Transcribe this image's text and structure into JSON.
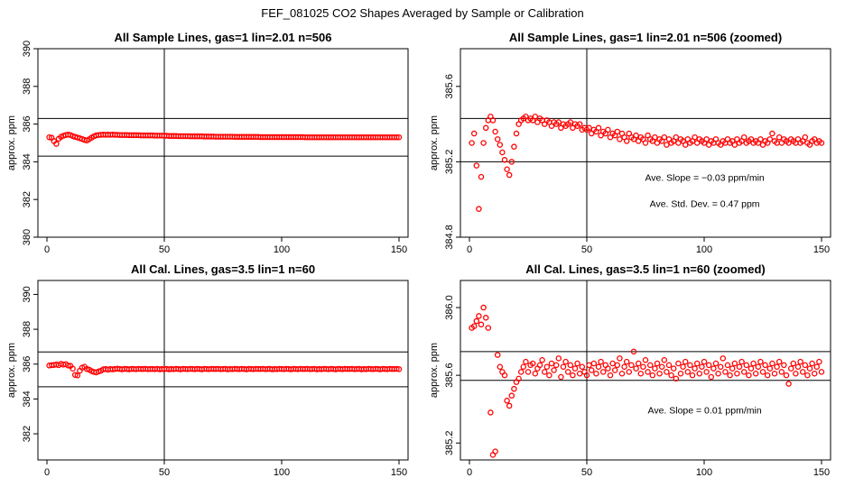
{
  "figure_title": "FEF_081025  CO2 Shapes Averaged by Sample or Calibration",
  "colors": {
    "points": "#ff0000",
    "lines": "#000000",
    "background": "#ffffff"
  },
  "chart_data": [
    {
      "type": "scatter",
      "title": "All Sample Lines, gas=1 lin=2.01 n=506",
      "xlabel": "",
      "ylabel": "approx. ppm",
      "xlim": [
        0,
        150
      ],
      "ylim": [
        380,
        390
      ],
      "xticks": [
        0,
        50,
        100,
        150
      ],
      "yticks": [
        380,
        382,
        384,
        386,
        388,
        390
      ],
      "hlines": [
        386.3,
        384.3
      ],
      "vline": 50,
      "annotations": [],
      "x_range": [
        1,
        150
      ],
      "y": [
        385.3,
        385.28,
        385.1,
        384.95,
        385.22,
        385.32,
        385.38,
        385.42,
        385.44,
        385.42,
        385.36,
        385.32,
        385.29,
        385.25,
        385.21,
        385.16,
        385.13,
        385.2,
        385.28,
        385.35,
        385.4,
        385.42,
        385.43,
        385.44,
        385.43,
        385.44,
        385.43,
        385.44,
        385.43,
        385.43,
        385.42,
        385.42,
        385.42,
        385.42,
        385.41,
        385.41,
        385.41,
        385.41,
        385.41,
        385.4,
        385.4,
        385.4,
        385.4,
        385.4,
        385.4,
        385.39,
        385.39,
        385.39,
        385.39,
        385.38,
        385.38,
        385.37,
        385.37,
        385.37,
        385.37,
        385.36,
        385.36,
        385.36,
        385.36,
        385.36,
        385.35,
        385.35,
        385.35,
        385.35,
        385.35,
        385.35,
        385.34,
        385.34,
        385.34,
        385.34,
        385.34,
        385.33,
        385.33,
        385.33,
        385.33,
        385.33,
        385.33,
        385.33,
        385.33,
        385.32,
        385.32,
        385.32,
        385.32,
        385.32,
        385.32,
        385.32,
        385.32,
        385.32,
        385.32,
        385.32,
        385.31,
        385.31,
        385.31,
        385.31,
        385.31,
        385.31,
        385.31,
        385.31,
        385.31,
        385.31,
        385.31,
        385.31,
        385.31,
        385.31,
        385.31,
        385.31,
        385.31,
        385.31,
        385.31,
        385.3,
        385.3,
        385.3,
        385.3,
        385.3,
        385.3,
        385.3,
        385.3,
        385.3,
        385.3,
        385.3,
        385.3,
        385.3,
        385.3,
        385.3,
        385.3,
        385.3,
        385.3,
        385.3,
        385.3,
        385.3,
        385.3,
        385.3,
        385.3,
        385.3,
        385.3,
        385.3,
        385.3,
        385.3,
        385.3,
        385.3,
        385.3,
        385.3,
        385.3,
        385.3,
        385.3,
        385.3,
        385.3,
        385.3,
        385.3,
        385.3
      ]
    },
    {
      "type": "scatter",
      "title": "All Sample Lines, gas=1 lin=2.01 n=506 (zoomed)",
      "xlabel": "",
      "ylabel": "approx. ppm",
      "xlim": [
        0,
        150
      ],
      "ylim": [
        384.8,
        385.8
      ],
      "xticks": [
        0,
        50,
        100,
        150
      ],
      "yticks": [
        384.8,
        385.2,
        385.6
      ],
      "hlines": [
        385.43,
        385.2
      ],
      "vline": 50,
      "annotations": [
        "Ave. Slope =  −0.03  ppm/min",
        "Ave. Std. Dev. =  0.47  ppm"
      ],
      "x_range": [
        1,
        150
      ],
      "y": [
        385.3,
        385.35,
        385.18,
        384.95,
        385.12,
        385.3,
        385.38,
        385.42,
        385.44,
        385.42,
        385.36,
        385.32,
        385.29,
        385.25,
        385.21,
        385.16,
        385.13,
        385.2,
        385.28,
        385.35,
        385.4,
        385.42,
        385.43,
        385.44,
        385.42,
        385.43,
        385.42,
        385.44,
        385.41,
        385.43,
        385.42,
        385.4,
        385.42,
        385.41,
        385.39,
        385.41,
        385.4,
        385.41,
        385.38,
        385.4,
        385.39,
        385.4,
        385.41,
        385.38,
        385.4,
        385.39,
        385.4,
        385.37,
        385.38,
        385.37,
        385.38,
        385.35,
        385.37,
        385.36,
        385.38,
        385.34,
        385.36,
        385.35,
        385.37,
        385.33,
        385.35,
        385.34,
        385.36,
        385.32,
        385.35,
        385.33,
        385.31,
        385.35,
        385.33,
        385.32,
        385.34,
        385.31,
        385.33,
        385.32,
        385.3,
        385.34,
        385.32,
        385.31,
        385.33,
        385.3,
        385.32,
        385.31,
        385.33,
        385.29,
        385.32,
        385.3,
        385.31,
        385.33,
        385.3,
        385.32,
        385.31,
        385.29,
        385.32,
        385.3,
        385.31,
        385.33,
        385.3,
        385.32,
        385.31,
        385.3,
        385.32,
        385.29,
        385.31,
        385.3,
        385.32,
        385.3,
        385.29,
        385.31,
        385.3,
        385.32,
        385.3,
        385.31,
        385.29,
        385.32,
        385.3,
        385.31,
        385.33,
        385.3,
        385.31,
        385.32,
        385.3,
        385.31,
        385.3,
        385.32,
        385.29,
        385.31,
        385.3,
        385.32,
        385.35,
        385.31,
        385.3,
        385.33,
        385.3,
        385.32,
        385.31,
        385.3,
        385.32,
        385.31,
        385.3,
        385.32,
        385.3,
        385.31,
        385.33,
        385.3,
        385.29,
        385.31,
        385.32,
        385.3,
        385.31,
        385.3
      ]
    },
    {
      "type": "scatter",
      "title": "All Cal. Lines, gas=3.5 lin=1 n=60",
      "xlabel": "",
      "ylabel": "approx. ppm",
      "xlim": [
        0,
        150
      ],
      "ylim": [
        380.5,
        390.8
      ],
      "xticks": [
        0,
        50,
        100,
        150
      ],
      "yticks": [
        382,
        384,
        386,
        388,
        390
      ],
      "hlines": [
        386.7,
        384.7
      ],
      "vline": 50,
      "annotations": [],
      "x_range": [
        1,
        150
      ],
      "y": [
        385.92,
        385.94,
        385.95,
        385.98,
        385.94,
        386.02,
        385.97,
        386,
        385.92,
        385.9,
        385.74,
        385.38,
        385.35,
        385.62,
        385.8,
        385.85,
        385.72,
        385.68,
        385.6,
        385.55,
        385.52,
        385.58,
        385.62,
        385.7,
        385.72,
        385.68,
        385.72,
        385.7,
        385.72,
        385.74,
        385.72,
        385.7,
        385.73,
        385.72,
        385.7,
        385.73,
        385.72,
        385.71,
        385.73,
        385.72,
        385.72,
        385.73,
        385.71,
        385.72,
        385.72,
        385.71,
        385.73,
        385.7,
        385.72,
        385.71,
        385.73,
        385.7,
        385.72,
        385.71,
        385.73,
        385.72,
        385.7,
        385.73,
        385.72,
        385.71,
        385.73,
        385.72,
        385.71,
        385.73,
        385.72,
        385.7,
        385.73,
        385.72,
        385.71,
        385.73,
        385.72,
        385.72,
        385.73,
        385.71,
        385.72,
        385.73,
        385.7,
        385.72,
        385.71,
        385.73,
        385.72,
        385.71,
        385.73,
        385.72,
        385.7,
        385.73,
        385.72,
        385.71,
        385.73,
        385.72,
        385.72,
        385.73,
        385.71,
        385.72,
        385.73,
        385.7,
        385.72,
        385.71,
        385.73,
        385.72,
        385.71,
        385.73,
        385.72,
        385.7,
        385.73,
        385.72,
        385.71,
        385.73,
        385.72,
        385.72,
        385.73,
        385.71,
        385.72,
        385.73,
        385.7,
        385.72,
        385.71,
        385.73,
        385.72,
        385.71,
        385.73,
        385.72,
        385.7,
        385.73,
        385.72,
        385.71,
        385.73,
        385.72,
        385.72,
        385.73,
        385.71,
        385.72,
        385.73,
        385.7,
        385.72,
        385.71,
        385.73,
        385.72,
        385.71,
        385.73,
        385.72,
        385.7,
        385.73,
        385.72,
        385.71,
        385.73,
        385.72,
        385.72,
        385.73,
        385.71
      ]
    },
    {
      "type": "scatter",
      "title": "All Cal. Lines, gas=3.5 lin=1 n=60 (zoomed)",
      "xlabel": "",
      "ylabel": "approx. ppm",
      "xlim": [
        0,
        150
      ],
      "ylim": [
        385.1,
        386.16
      ],
      "xticks": [
        0,
        50,
        100,
        150
      ],
      "yticks": [
        385.2,
        385.6,
        386.0
      ],
      "hlines": [
        385.74,
        385.57
      ],
      "vline": 50,
      "annotations": [
        "Ave. Slope =  0.01  ppm/min"
      ],
      "x_range": [
        1,
        150
      ],
      "y": [
        385.88,
        385.89,
        385.92,
        385.95,
        385.9,
        386.0,
        385.94,
        385.88,
        385.38,
        385.13,
        385.15,
        385.72,
        385.65,
        385.62,
        385.6,
        385.45,
        385.42,
        385.48,
        385.52,
        385.56,
        385.58,
        385.62,
        385.65,
        385.68,
        385.62,
        385.66,
        385.67,
        385.61,
        385.64,
        385.66,
        385.69,
        385.62,
        385.65,
        385.6,
        385.67,
        385.63,
        385.66,
        385.7,
        385.59,
        385.65,
        385.68,
        385.62,
        385.66,
        385.6,
        385.64,
        385.67,
        385.61,
        385.65,
        385.62,
        385.6,
        385.66,
        385.63,
        385.67,
        385.61,
        385.65,
        385.68,
        385.62,
        385.66,
        385.64,
        385.6,
        385.67,
        385.63,
        385.66,
        385.7,
        385.61,
        385.65,
        385.68,
        385.62,
        385.66,
        385.74,
        385.64,
        385.67,
        385.61,
        385.65,
        385.69,
        385.62,
        385.66,
        385.6,
        385.64,
        385.67,
        385.61,
        385.65,
        385.69,
        385.62,
        385.66,
        385.6,
        385.64,
        385.58,
        385.67,
        385.61,
        385.65,
        385.68,
        385.62,
        385.66,
        385.6,
        385.64,
        385.67,
        385.61,
        385.65,
        385.68,
        385.62,
        385.66,
        385.59,
        385.64,
        385.67,
        385.61,
        385.65,
        385.7,
        385.62,
        385.66,
        385.6,
        385.64,
        385.67,
        385.61,
        385.65,
        385.68,
        385.62,
        385.66,
        385.6,
        385.64,
        385.67,
        385.61,
        385.65,
        385.68,
        385.62,
        385.66,
        385.6,
        385.64,
        385.67,
        385.61,
        385.65,
        385.68,
        385.62,
        385.66,
        385.6,
        385.55,
        385.64,
        385.67,
        385.61,
        385.65,
        385.68,
        385.62,
        385.66,
        385.6,
        385.64,
        385.67,
        385.61,
        385.65,
        385.68,
        385.62
      ]
    }
  ]
}
